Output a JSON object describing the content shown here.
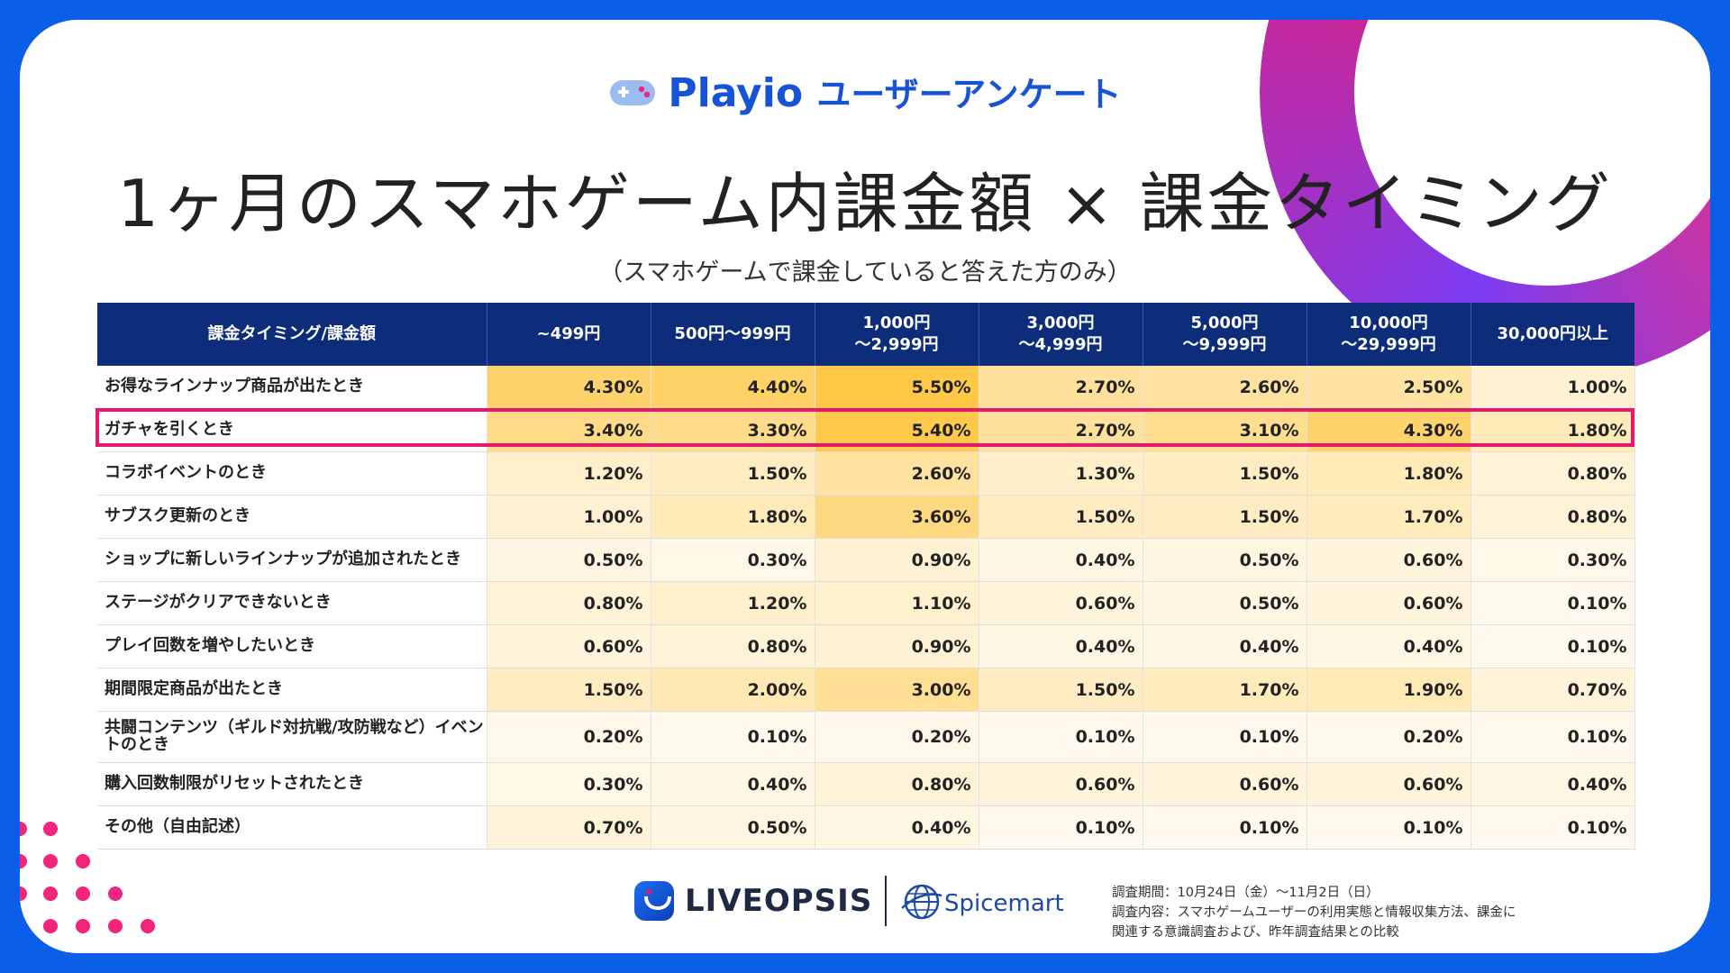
{
  "brand": {
    "name": "Playio",
    "suffix": "ユーザーアンケート",
    "icon": "gamepad-icon"
  },
  "title": "1ヶ月のスマホゲーム内課金額 × 課金タイミング",
  "subtitle": "（スマホゲームで課金していると答えた方のみ）",
  "colors": {
    "header_bg": "#0d2d7a",
    "highlight": "#e5176f",
    "heat_max": "#ffd15c"
  },
  "chart_data": {
    "type": "heatmap",
    "corner_label": "課金タイミング/課金額",
    "columns": [
      {
        "line1": "~499円",
        "line2": ""
      },
      {
        "line1": "500円～999円",
        "line2": ""
      },
      {
        "line1": "1,000円",
        "line2": "～2,999円"
      },
      {
        "line1": "3,000円",
        "line2": "～4,999円"
      },
      {
        "line1": "5,000円",
        "line2": "～9,999円"
      },
      {
        "line1": "10,000円",
        "line2": "～29,999円"
      },
      {
        "line1": "30,000円以上",
        "line2": ""
      }
    ],
    "rows": [
      {
        "label": "お得なラインナップ商品が出たとき",
        "values": [
          4.3,
          4.4,
          5.5,
          2.7,
          2.6,
          2.5,
          1.0
        ]
      },
      {
        "label": "ガチャを引くとき",
        "values": [
          3.4,
          3.3,
          5.4,
          2.7,
          3.1,
          4.3,
          1.8
        ],
        "highlighted": true
      },
      {
        "label": "コラボイベントのとき",
        "values": [
          1.2,
          1.5,
          2.6,
          1.3,
          1.5,
          1.8,
          0.8
        ]
      },
      {
        "label": "サブスク更新のとき",
        "values": [
          1.0,
          1.8,
          3.6,
          1.5,
          1.5,
          1.7,
          0.8
        ]
      },
      {
        "label": "ショップに新しいラインナップが追加されたとき",
        "values": [
          0.5,
          0.3,
          0.9,
          0.4,
          0.5,
          0.6,
          0.3
        ]
      },
      {
        "label": "ステージがクリアできないとき",
        "values": [
          0.8,
          1.2,
          1.1,
          0.6,
          0.5,
          0.6,
          0.1
        ]
      },
      {
        "label": "プレイ回数を増やしたいとき",
        "values": [
          0.6,
          0.8,
          0.9,
          0.4,
          0.4,
          0.4,
          0.1
        ]
      },
      {
        "label": "期間限定商品が出たとき",
        "values": [
          1.5,
          2.0,
          3.0,
          1.5,
          1.7,
          1.9,
          0.7
        ]
      },
      {
        "label": "共闘コンテンツ（ギルド対抗戦/攻防戦など）イベントのとき",
        "values": [
          0.2,
          0.1,
          0.2,
          0.1,
          0.1,
          0.2,
          0.1
        ],
        "tall": true
      },
      {
        "label": "購入回数制限がリセットされたとき",
        "values": [
          0.3,
          0.4,
          0.8,
          0.6,
          0.6,
          0.6,
          0.4
        ]
      },
      {
        "label": "その他（自由記述）",
        "values": [
          0.7,
          0.5,
          0.4,
          0.1,
          0.1,
          0.1,
          0.1
        ]
      }
    ],
    "unit": "%"
  },
  "footer": {
    "logo_left": "LIVEOPSIS",
    "logo_right": "Spicemart",
    "notes": [
      "調査期間：10月24日（金）～11月2日（日）",
      "調査内容：スマホゲームユーザーの利用実態と情報収集方法、課金に",
      "関連する意識調査および、昨年調査結果との比較"
    ]
  }
}
